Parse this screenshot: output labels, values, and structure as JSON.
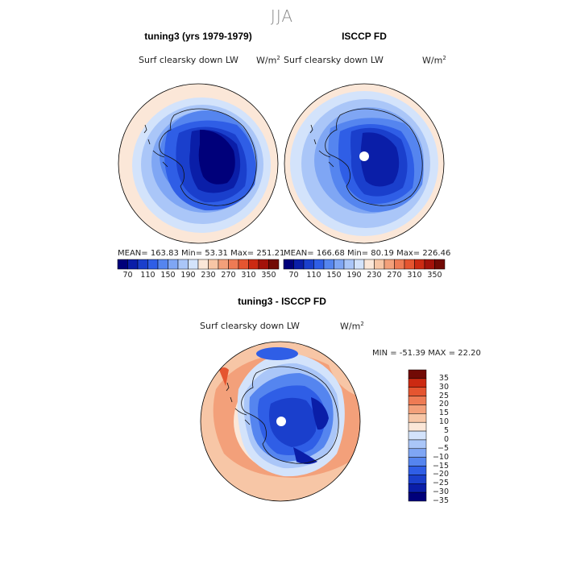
{
  "season": "JJA",
  "panel_model": {
    "title": "tuning3 (yrs 1979-1979)",
    "field": "Surf clearsky down LW",
    "units_base": "W/m",
    "units_exp": "2",
    "stats": "MEAN= 163.83  Min=  53.31  Max= 251.21"
  },
  "panel_obs": {
    "title": "ISCCP FD",
    "field": "Surf clearsky down LW",
    "units_base": "W/m",
    "units_exp": "2",
    "stats": "MEAN= 166.68  Min=  80.19  Max= 226.46"
  },
  "panel_diff": {
    "title": "tuning3 - ISCCP FD",
    "field": "Surf clearsky down LW",
    "units_base": "W/m",
    "units_exp": "2",
    "stats": "MIN = -51.39 MAX =  22.20"
  },
  "abs_colorbar": {
    "colors": [
      "#00007a",
      "#0a1ea8",
      "#1a3fcc",
      "#2f5ee6",
      "#5585ef",
      "#7fa6f4",
      "#aac6f8",
      "#d3e3fb",
      "#fbe7d8",
      "#f7c6a6",
      "#f3a07a",
      "#ee7b54",
      "#e55530",
      "#cc2a12",
      "#a3120a",
      "#720a05"
    ],
    "labels": [
      "70",
      "110",
      "150",
      "190",
      "230",
      "270",
      "310",
      "350"
    ]
  },
  "diff_colorbar": {
    "colors": [
      "#00007a",
      "#0a1ea8",
      "#1a3fcc",
      "#2f5ee6",
      "#5585ef",
      "#7fa6f4",
      "#aac6f8",
      "#d3e3fb",
      "#fbe7d8",
      "#f7c6a6",
      "#f3a07a",
      "#ee7b54",
      "#e55530",
      "#cc2a12",
      "#720a05"
    ],
    "labels": [
      "35",
      "30",
      "25",
      "20",
      "15",
      "10",
      "5",
      "0",
      "−5",
      "−10",
      "−15",
      "−20",
      "−25",
      "−30",
      "−35"
    ]
  }
}
